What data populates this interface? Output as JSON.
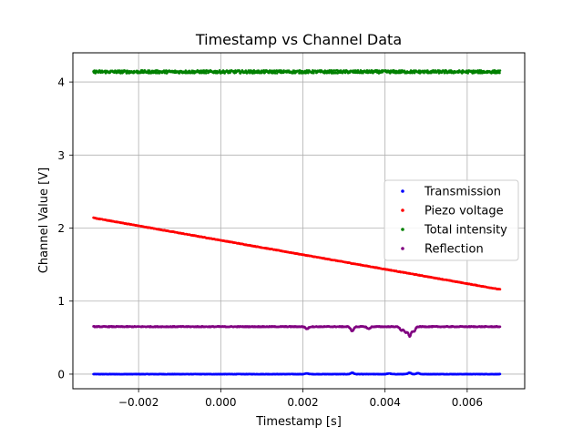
{
  "chart_data": {
    "type": "scatter",
    "title": "Timestamp vs Channel Data",
    "xlabel": "Timestamp [s]",
    "ylabel": "Channel Value [V]",
    "xlim": [
      -0.0036,
      0.0074
    ],
    "ylim": [
      -0.2,
      4.4
    ],
    "xticks": [
      -0.002,
      0.0,
      0.002,
      0.004,
      0.006
    ],
    "xtick_labels": [
      "−0.002",
      "0.000",
      "0.002",
      "0.004",
      "0.006"
    ],
    "yticks": [
      0,
      1,
      2,
      3,
      4
    ],
    "ytick_labels": [
      "0",
      "1",
      "2",
      "3",
      "4"
    ],
    "grid": true,
    "legend_position": "center-right",
    "x_range": [
      -0.0031,
      0.0068
    ],
    "series": [
      {
        "name": "Transmission",
        "color": "#0000ff",
        "baseline": 0.0,
        "noise": 0.003,
        "bumps": [
          [
            0.0021,
            0.01
          ],
          [
            0.0032,
            0.02
          ],
          [
            0.0041,
            0.01
          ],
          [
            0.0046,
            0.02
          ],
          [
            0.0048,
            0.015
          ]
        ]
      },
      {
        "name": "Piezo voltage",
        "color": "#ff0000",
        "start": [
          -0.0031,
          2.14
        ],
        "end": [
          0.0068,
          1.16
        ],
        "noise": 0.004
      },
      {
        "name": "Total intensity",
        "color": "#008000",
        "baseline": 4.14,
        "noise": 0.02,
        "bumps": []
      },
      {
        "name": "Reflection",
        "color": "#800080",
        "baseline": 0.65,
        "noise": 0.006,
        "bumps": [
          [
            0.0021,
            -0.03
          ],
          [
            0.0032,
            -0.06
          ],
          [
            0.0036,
            -0.03
          ],
          [
            0.0044,
            -0.05
          ],
          [
            0.0045,
            -0.08
          ],
          [
            0.0046,
            -0.13
          ],
          [
            0.0047,
            -0.07
          ]
        ]
      }
    ]
  }
}
